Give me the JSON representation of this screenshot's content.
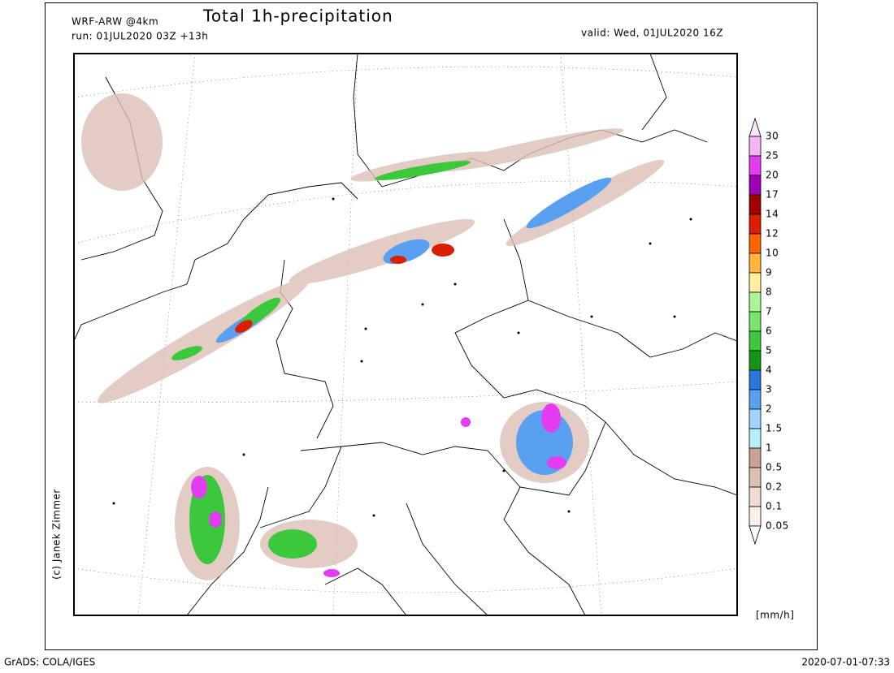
{
  "header": {
    "model": "WRF-ARW @4km",
    "title": "Total 1h-precipitation",
    "run": "run: 01JUL2020 03Z +13h",
    "valid": "valid: Wed, 01JUL2020 16Z"
  },
  "credit": "(c) Janek Zimmer",
  "colorbar": {
    "unit": "[mm/h]",
    "levels": [
      30,
      25,
      20,
      17,
      14,
      12,
      10,
      9,
      8,
      7,
      6,
      5,
      4,
      3,
      2,
      1.5,
      1,
      0.5,
      0.2,
      0.1,
      0.05
    ],
    "colors": [
      "#fde6fd",
      "#f5b4f5",
      "#e43cf0",
      "#a000b4",
      "#a00000",
      "#dc1e00",
      "#ff6400",
      "#ffb43c",
      "#fff0a0",
      "#a8f59a",
      "#78e66e",
      "#3cc83c",
      "#149614",
      "#2878dc",
      "#5aa0f0",
      "#a0d2fa",
      "#b4f0fa",
      "#c8a096",
      "#dcc0b4",
      "#f0dcd2",
      "#fbefe8",
      "#ffffff"
    ]
  },
  "footer": {
    "left": "GrADS: COLA/IGES",
    "right": "2020-07-01-07:33"
  }
}
